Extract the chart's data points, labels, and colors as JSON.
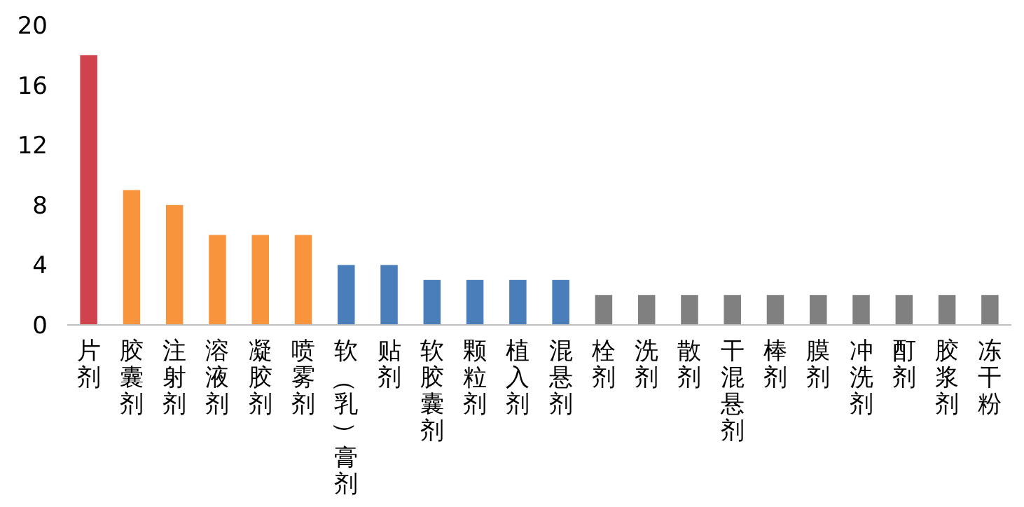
{
  "chart_data": {
    "type": "bar",
    "categories": [
      "片剂",
      "胶囊剂",
      "注射剂",
      "溶液剂",
      "凝胶剂",
      "喷雾剂",
      "软（乳）膏剂",
      "贴剂",
      "软胶囊剂",
      "颗粒剂",
      "植入剂",
      "混悬剂",
      "栓剂",
      "洗剂",
      "散剂",
      "干混悬剂",
      "棒剂",
      "膜剂",
      "冲洗剂",
      "酊剂",
      "胶浆剂",
      "冻干粉"
    ],
    "values": [
      18,
      9,
      8,
      6,
      6,
      6,
      4,
      4,
      3,
      3,
      3,
      3,
      2,
      2,
      2,
      2,
      2,
      2,
      2,
      2,
      2,
      2
    ],
    "colors": [
      "#d0424c",
      "#f7943c",
      "#f7943c",
      "#f7943c",
      "#f7943c",
      "#f7943c",
      "#4a7ebb",
      "#4a7ebb",
      "#4a7ebb",
      "#4a7ebb",
      "#4a7ebb",
      "#4a7ebb",
      "#808080",
      "#808080",
      "#808080",
      "#808080",
      "#808080",
      "#808080",
      "#808080",
      "#808080",
      "#808080",
      "#808080"
    ],
    "ylim": [
      0,
      20
    ],
    "yticks": [
      0,
      4,
      8,
      12,
      16,
      20
    ]
  }
}
